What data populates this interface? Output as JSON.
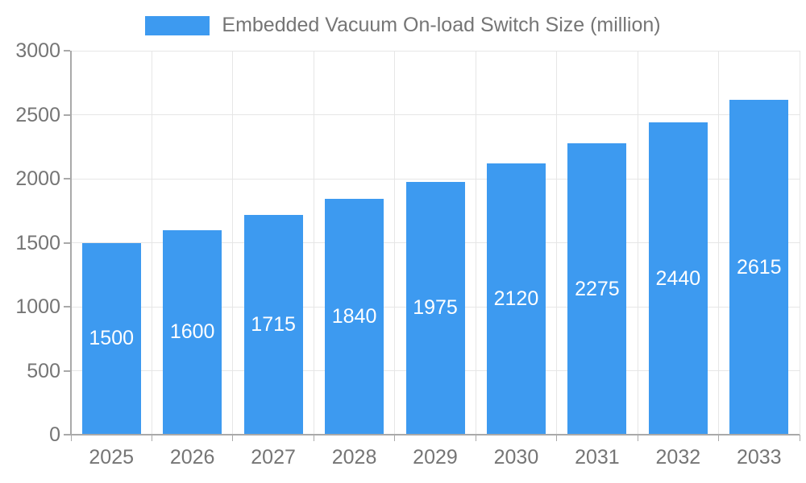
{
  "legend": {
    "label": "Embedded Vacuum On-load Switch Size (million)"
  },
  "chart_data": {
    "type": "bar",
    "title": "Embedded Vacuum On-load Switch Size (million)",
    "categories": [
      "2025",
      "2026",
      "2027",
      "2028",
      "2029",
      "2030",
      "2031",
      "2032",
      "2033"
    ],
    "values": [
      1500,
      1600,
      1715,
      1840,
      1975,
      2120,
      2275,
      2440,
      2615
    ],
    "xlabel": "",
    "ylabel": "",
    "ylim": [
      0,
      3000
    ],
    "yticks": [
      0,
      500,
      1000,
      1500,
      2000,
      2500,
      3000
    ],
    "grid": true,
    "legend_position": "top-center",
    "bar_labels_inside": true,
    "colors": {
      "bar": "#3d9af0",
      "bar_label": "#ffffff",
      "axis_text": "#757575",
      "gridline": "#e6e6e6",
      "axis_line": "#a9a9a9",
      "background": "#ffffff"
    }
  }
}
